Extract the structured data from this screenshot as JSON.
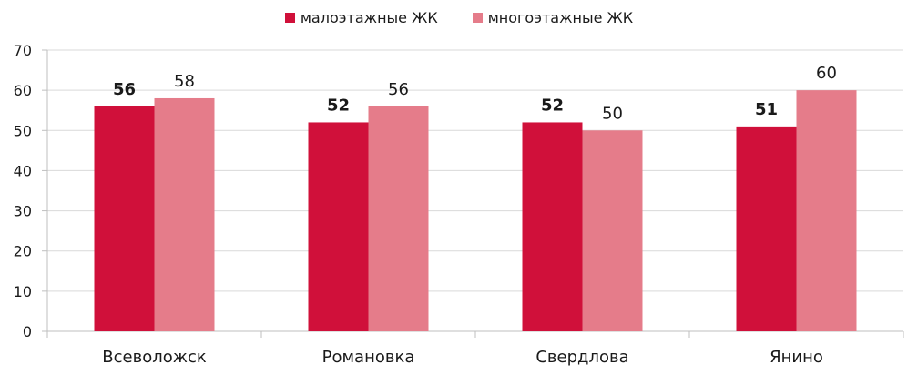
{
  "chart_data": {
    "type": "bar",
    "categories": [
      "Всеволожск",
      "Романовка",
      "Свердлова",
      "Янино"
    ],
    "series": [
      {
        "name": "малоэтажные ЖК",
        "values": [
          56,
          52,
          52,
          51
        ],
        "color": "#d0103a",
        "label_bold": true
      },
      {
        "name": "многоэтажные ЖК",
        "values": [
          58,
          56,
          50,
          60
        ],
        "color": "#e57c8a",
        "label_bold": false
      }
    ],
    "ylim": [
      0,
      70
    ],
    "yticks": [
      0,
      10,
      20,
      30,
      40,
      50,
      60,
      70
    ],
    "grid": true,
    "legend_position": "top-center",
    "axis_color": "#bfbfbf"
  }
}
